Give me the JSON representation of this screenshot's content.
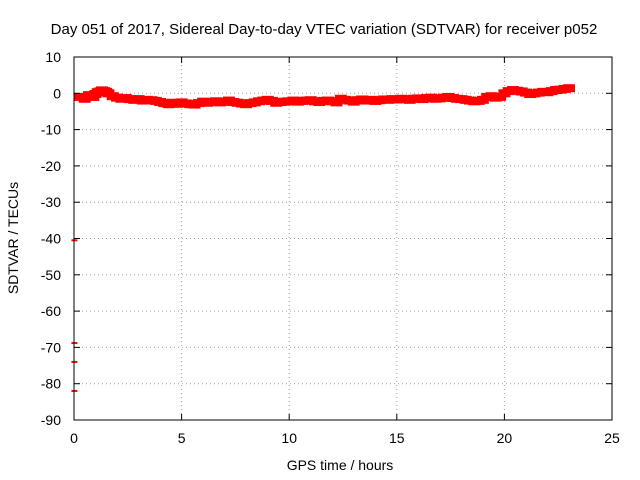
{
  "chart_data": {
    "type": "scatter",
    "title": "Day 051 of 2017, Sidereal Day-to-day VTEC variation (SDTVAR) for receiver p052",
    "xlabel": "GPS time / hours",
    "ylabel": "SDTVAR / TECUs",
    "xlim": [
      0,
      25
    ],
    "ylim": [
      -90,
      10
    ],
    "xticks": [
      0,
      5,
      10,
      15,
      20,
      25
    ],
    "yticks": [
      10,
      0,
      -10,
      -20,
      -30,
      -40,
      -50,
      -60,
      -70,
      -80,
      -90
    ],
    "grid": true,
    "legend": "none",
    "marker_color": "#ff0000",
    "series": [
      {
        "x": [
          0.3,
          0.5,
          0.7,
          0.9,
          1.0,
          1.1,
          1.2,
          1.3,
          1.4,
          1.5,
          1.6,
          1.8,
          2.0,
          2.2,
          2.4,
          2.6,
          2.8,
          3.0,
          3.2,
          3.4,
          3.6,
          3.8,
          4.0,
          4.2,
          4.4,
          4.6,
          4.8,
          5.0,
          5.2,
          5.4,
          5.6,
          5.8,
          6.0,
          6.2,
          6.4,
          6.6,
          6.8,
          7.0,
          7.2,
          7.4,
          7.6,
          7.8,
          8.0,
          8.2,
          8.4,
          8.6,
          8.8,
          9.0,
          9.2,
          9.4,
          9.6,
          9.8,
          10.0,
          10.2,
          10.4,
          10.6,
          10.8,
          11.0,
          11.2,
          11.4,
          11.6,
          11.8,
          12.0,
          12.2,
          12.4,
          12.6,
          12.8,
          13.0,
          13.2,
          13.4,
          13.6,
          13.8,
          14.0,
          14.2,
          14.4,
          14.6,
          14.8,
          15.0,
          15.2,
          15.4,
          15.6,
          15.8,
          16.0,
          16.2,
          16.4,
          16.6,
          16.8,
          17.0,
          17.2,
          17.4,
          17.6,
          17.8,
          18.0,
          18.2,
          18.4,
          18.6,
          18.8,
          19.0,
          19.2,
          19.4,
          19.6,
          19.8,
          20.0,
          20.2,
          20.4,
          20.6,
          20.8,
          21.0,
          21.2,
          21.4,
          21.6,
          21.8,
          22.0,
          22.2,
          22.4,
          22.6,
          22.8,
          23.0
        ],
        "y": [
          -1.0,
          -1.5,
          -0.5,
          -1.0,
          -0.2,
          0.3,
          0.5,
          0.8,
          0.6,
          0.4,
          0.0,
          -0.8,
          -1.2,
          -1.5,
          -1.3,
          -1.6,
          -1.8,
          -1.6,
          -2.0,
          -1.8,
          -1.9,
          -2.1,
          -2.4,
          -2.7,
          -3.0,
          -2.6,
          -2.9,
          -2.5,
          -2.8,
          -3.0,
          -3.1,
          -2.7,
          -2.3,
          -2.6,
          -2.4,
          -2.2,
          -2.5,
          -2.3,
          -2.0,
          -2.4,
          -2.6,
          -2.8,
          -3.0,
          -2.7,
          -2.5,
          -2.2,
          -2.0,
          -1.8,
          -2.1,
          -2.6,
          -2.4,
          -2.3,
          -2.2,
          -2.0,
          -2.3,
          -2.1,
          -2.0,
          -1.9,
          -2.2,
          -2.4,
          -2.1,
          -2.0,
          -2.2,
          -2.5,
          -1.5,
          -1.8,
          -2.0,
          -2.3,
          -1.9,
          -1.7,
          -2.0,
          -1.8,
          -2.1,
          -1.9,
          -1.7,
          -1.8,
          -1.6,
          -1.7,
          -1.5,
          -1.6,
          -1.8,
          -1.5,
          -1.4,
          -1.6,
          -1.3,
          -1.2,
          -1.5,
          -1.4,
          -1.2,
          -1.0,
          -1.3,
          -1.5,
          -1.6,
          -1.8,
          -2.0,
          -2.2,
          -2.1,
          -1.8,
          -1.0,
          -0.8,
          -1.2,
          -1.0,
          0.0,
          0.6,
          0.9,
          0.7,
          0.5,
          0.2,
          -0.2,
          0.0,
          0.2,
          0.4,
          0.3,
          0.6,
          0.9,
          1.0,
          1.2,
          1.4
        ]
      },
      {
        "x": [
          0.02,
          0.02,
          0.02,
          0.02
        ],
        "y": [
          -40.5,
          -68.8,
          -74.0,
          -82.0
        ]
      }
    ]
  }
}
